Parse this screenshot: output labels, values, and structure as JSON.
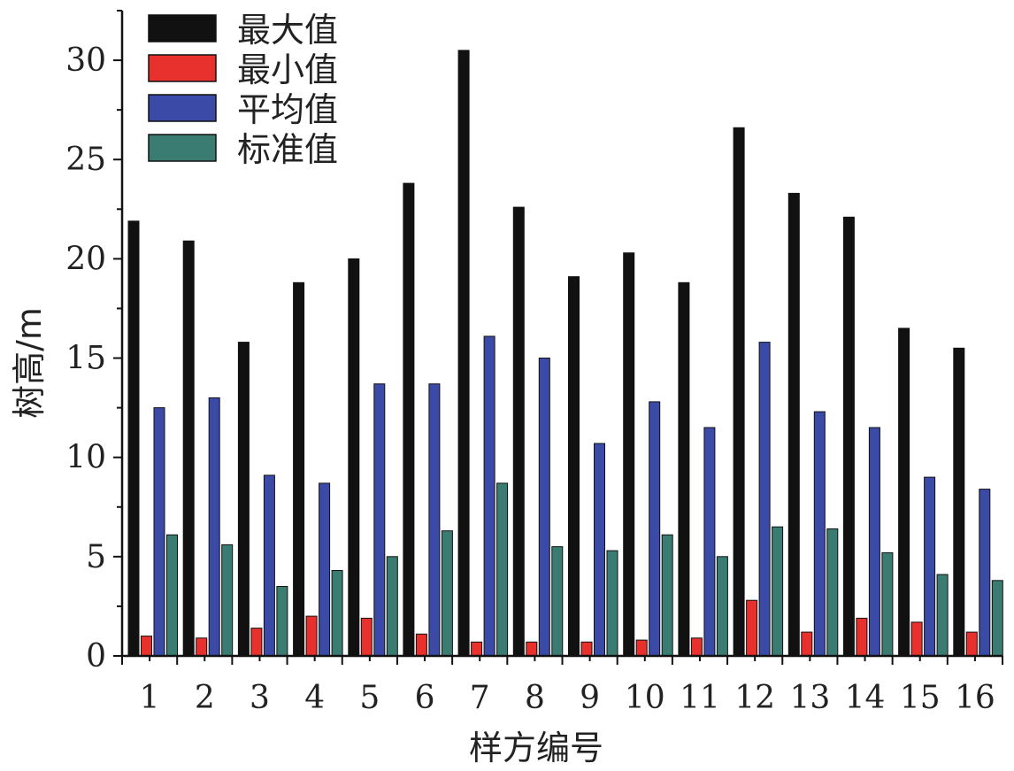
{
  "chart_data": {
    "type": "bar",
    "title": "",
    "xlabel": "样方编号",
    "ylabel": "树高/m",
    "ylim": [
      0,
      32.5
    ],
    "yticks": [
      0,
      5,
      10,
      15,
      20,
      25,
      30
    ],
    "legend_position": "top-left",
    "grid": false,
    "categories": [
      "1",
      "2",
      "3",
      "4",
      "5",
      "6",
      "7",
      "8",
      "9",
      "10",
      "11",
      "12",
      "13",
      "14",
      "15",
      "16"
    ],
    "series": [
      {
        "name": "最大值",
        "color": "#111111",
        "values": [
          21.9,
          20.9,
          15.8,
          18.8,
          20.0,
          23.8,
          30.5,
          22.6,
          19.1,
          20.3,
          18.8,
          26.6,
          23.3,
          22.1,
          16.5,
          15.5
        ]
      },
      {
        "name": "最小值",
        "color": "#e8302c",
        "values": [
          1.0,
          0.9,
          1.4,
          2.0,
          1.9,
          1.1,
          0.7,
          0.7,
          0.7,
          0.8,
          0.9,
          2.8,
          1.2,
          1.9,
          1.7,
          1.2
        ]
      },
      {
        "name": "平均值",
        "color": "#3b4aa6",
        "values": [
          12.5,
          13.0,
          9.1,
          8.7,
          13.7,
          13.7,
          16.1,
          15.0,
          10.7,
          12.8,
          11.5,
          15.8,
          12.3,
          11.5,
          9.0,
          8.4
        ]
      },
      {
        "name": "标准值",
        "color": "#3a7c72",
        "values": [
          6.1,
          5.6,
          3.5,
          4.3,
          5.0,
          6.3,
          8.7,
          5.5,
          5.3,
          6.1,
          5.0,
          6.5,
          6.4,
          5.2,
          4.1,
          3.8
        ]
      }
    ]
  }
}
